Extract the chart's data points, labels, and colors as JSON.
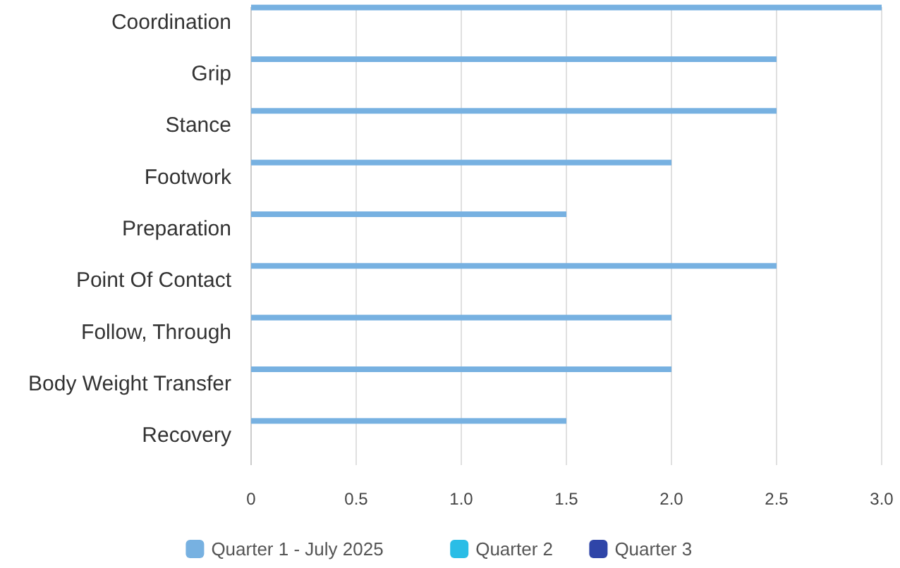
{
  "chart_data": {
    "type": "bar",
    "orientation": "horizontal",
    "categories": [
      "Coordination",
      "Grip",
      "Stance",
      "Footwork",
      "Preparation",
      "Point Of Contact",
      "Follow, Through",
      "Body Weight Transfer",
      "Recovery"
    ],
    "series": [
      {
        "name": "Quarter 1 - July 2025",
        "color": "#77b1e1",
        "values": [
          3,
          2.5,
          2.5,
          2,
          1.5,
          2.5,
          2,
          2,
          1.5
        ]
      },
      {
        "name": "Quarter 2",
        "color": "#2abde6",
        "values": [
          null,
          null,
          null,
          null,
          null,
          null,
          null,
          null,
          null
        ]
      },
      {
        "name": "Quarter 3",
        "color": "#2f45a8",
        "values": [
          null,
          null,
          null,
          null,
          null,
          null,
          null,
          null,
          null
        ]
      }
    ],
    "xlim": [
      0,
      3
    ],
    "xticks": [
      0,
      0.5,
      {
        "value": 1,
        "label": "1.0"
      },
      1.5,
      {
        "value": 2,
        "label": "2.0"
      },
      2.5,
      {
        "value": 3,
        "label": "3.0"
      }
    ],
    "grid": "x",
    "legend": "bottom"
  }
}
